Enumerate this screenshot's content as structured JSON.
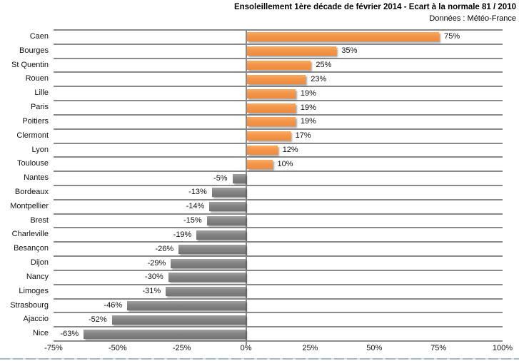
{
  "title": "Ensoleillement 1ère décade de février 2014 - Ecart à la normale 81 / 2010",
  "subtitle": "Données : Météo-France",
  "chart_data": {
    "type": "bar",
    "orientation": "horizontal",
    "title": "Ensoleillement 1ère décade de février 2014 - Ecart à la normale 81 / 2010",
    "subtitle": "Données : Météo-France",
    "categories": [
      "Caen",
      "Bourges",
      "St Quentin",
      "Rouen",
      "Lille",
      "Paris",
      "Poitiers",
      "Clermont",
      "Lyon",
      "Toulouse",
      "Nantes",
      "Bordeaux",
      "Montpellier",
      "Brest",
      "Charleville",
      "Besançon",
      "Dijon",
      "Nancy",
      "Limoges",
      "Strasbourg",
      "Ajaccio",
      "Nice"
    ],
    "values": [
      75,
      35,
      25,
      23,
      19,
      19,
      19,
      17,
      12,
      10,
      -5,
      -13,
      -14,
      -15,
      -19,
      -26,
      -29,
      -30,
      -31,
      -46,
      -52,
      -63
    ],
    "data_labels": [
      "75%",
      "35%",
      "25%",
      "23%",
      "19%",
      "19%",
      "19%",
      "17%",
      "12%",
      "10%",
      "-5%",
      "-13%",
      "-14%",
      "-15%",
      "-19%",
      "-26%",
      "-29%",
      "-30%",
      "-31%",
      "-46%",
      "-52%",
      "-63%"
    ],
    "x_tick_labels": [
      "-75%",
      "-50%",
      "-25%",
      "0%",
      "25%",
      "50%",
      "75%",
      "100%"
    ],
    "x_tick_values": [
      -75,
      -50,
      -25,
      0,
      25,
      50,
      75,
      100
    ],
    "xlim": [
      -75,
      100
    ],
    "xlabel": "",
    "ylabel": "",
    "legend": "none",
    "grid": "horizontal-category-separators",
    "colors": {
      "positive_bar": "#F39549",
      "negative_bar": "#838383",
      "gridline": "#8A8A8A",
      "text": "#111111",
      "background": "#FFFFFF"
    }
  }
}
